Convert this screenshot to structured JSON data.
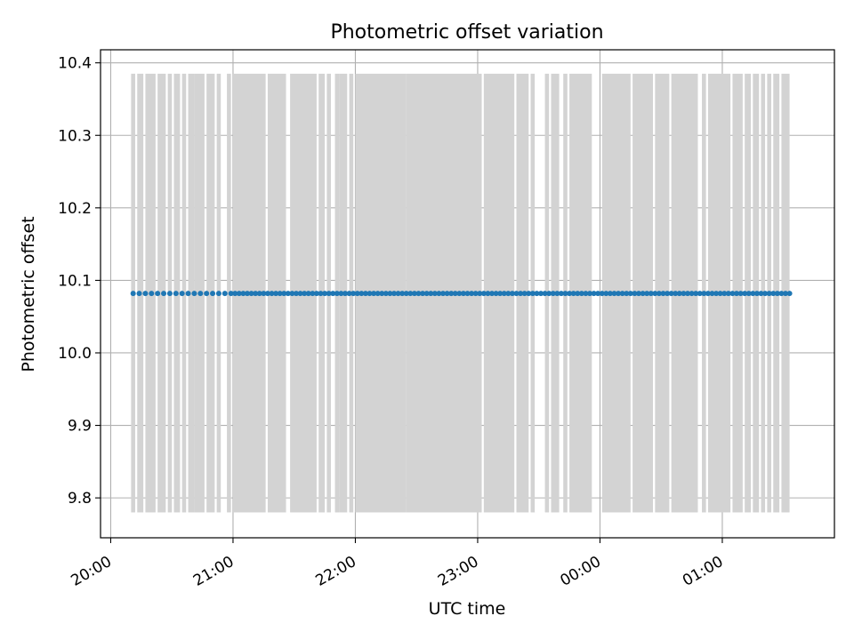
{
  "chart_data": {
    "type": "scatter",
    "title": "Photometric offset variation",
    "xlabel": "UTC time",
    "ylabel": "Photometric offset",
    "x_axis_kind": "time",
    "x_ticks": [
      "20:00",
      "21:00",
      "22:00",
      "23:00",
      "00:00",
      "01:00"
    ],
    "xlim": [
      "19:55",
      "25:55"
    ],
    "y_ticks": [
      "9.8",
      "9.9",
      "10.0",
      "10.1",
      "10.2",
      "10.3",
      "10.4"
    ],
    "ylim": [
      9.745,
      10.418
    ],
    "grid": true,
    "marker_color": "#1f77b4",
    "band_color": "#d3d3d3",
    "band_range": [
      9.78,
      10.385
    ],
    "bands": [
      [
        "20:10",
        "20:12"
      ],
      [
        "20:13",
        "20:16"
      ],
      [
        "20:17",
        "20:22"
      ],
      [
        "20:23",
        "20:27"
      ],
      [
        "20:28",
        "20:30"
      ],
      [
        "20:31",
        "20:34"
      ],
      [
        "20:35",
        "20:37"
      ],
      [
        "20:38",
        "20:41"
      ],
      [
        "20:41",
        "20:43"
      ],
      [
        "20:43",
        "20:46"
      ],
      [
        "20:47",
        "20:50"
      ],
      [
        "20:50",
        "20:51"
      ],
      [
        "20:52",
        "20:54"
      ],
      [
        "20:57",
        "20:59"
      ],
      [
        "21:00",
        "21:16"
      ],
      [
        "21:17",
        "21:26"
      ],
      [
        "21:28",
        "21:41"
      ],
      [
        "21:42",
        "21:45"
      ],
      [
        "21:46",
        "21:48"
      ],
      [
        "21:50",
        "21:52"
      ],
      [
        "21:52",
        "21:56"
      ],
      [
        "21:57",
        "21:59"
      ],
      [
        "22:00",
        "22:25"
      ],
      [
        "22:25",
        "23:02"
      ],
      [
        "23:03",
        "23:18"
      ],
      [
        "23:19",
        "23:25"
      ],
      [
        "23:26",
        "23:28"
      ],
      [
        "23:33",
        "23:35"
      ],
      [
        "23:36",
        "23:40"
      ],
      [
        "23:42",
        "23:44"
      ],
      [
        "23:45",
        "23:56"
      ],
      [
        "24:01",
        "24:15"
      ],
      [
        "24:16",
        "24:26"
      ],
      [
        "24:27",
        "24:34"
      ],
      [
        "24:35",
        "24:48"
      ],
      [
        "24:50",
        "24:52"
      ],
      [
        "24:53",
        "25:04"
      ],
      [
        "25:05",
        "25:10"
      ],
      [
        "25:11",
        "25:14"
      ],
      [
        "25:15",
        "25:18"
      ],
      [
        "25:19",
        "25:21"
      ],
      [
        "25:22",
        "25:24"
      ],
      [
        "25:25",
        "25:28"
      ],
      [
        "25:29",
        "25:33"
      ]
    ],
    "series": [
      {
        "y": 10.082,
        "x": [
          "20:11",
          "20:14",
          "20:17",
          "20:20",
          "20:23",
          "20:26",
          "20:29",
          "20:32",
          "20:35",
          "20:38",
          "20:41",
          "20:44",
          "20:47",
          "20:50",
          "20:53",
          "20:56",
          "20:59",
          "21:01",
          "21:03",
          "21:05",
          "21:07",
          "21:09",
          "21:11",
          "21:13",
          "21:15",
          "21:17",
          "21:19",
          "21:21",
          "21:23",
          "21:25",
          "21:27",
          "21:29",
          "21:31",
          "21:33",
          "21:35",
          "21:37",
          "21:39",
          "21:41",
          "21:43",
          "21:45",
          "21:47",
          "21:49",
          "21:51",
          "21:53",
          "21:55",
          "21:57",
          "21:59",
          "22:01",
          "22:03",
          "22:05",
          "22:07",
          "22:09",
          "22:11",
          "22:13",
          "22:15",
          "22:17",
          "22:19",
          "22:21",
          "22:23",
          "22:25",
          "22:27",
          "22:29",
          "22:31",
          "22:33",
          "22:35",
          "22:37",
          "22:39",
          "22:41",
          "22:43",
          "22:45",
          "22:47",
          "22:49",
          "22:51",
          "22:53",
          "22:55",
          "22:57",
          "22:59",
          "23:01",
          "23:03",
          "23:05",
          "23:07",
          "23:09",
          "23:11",
          "23:13",
          "23:15",
          "23:17",
          "23:19",
          "23:21",
          "23:23",
          "23:25",
          "23:27",
          "23:29",
          "23:31",
          "23:33",
          "23:35",
          "23:37",
          "23:39",
          "23:41",
          "23:43",
          "23:45",
          "23:47",
          "23:49",
          "23:51",
          "23:53",
          "23:55",
          "23:57",
          "23:59",
          "24:01",
          "24:03",
          "24:05",
          "24:07",
          "24:09",
          "24:11",
          "24:13",
          "24:15",
          "24:17",
          "24:19",
          "24:21",
          "24:23",
          "24:25",
          "24:27",
          "24:29",
          "24:31",
          "24:33",
          "24:35",
          "24:37",
          "24:39",
          "24:41",
          "24:43",
          "24:45",
          "24:47",
          "24:49",
          "24:51",
          "24:53",
          "24:55",
          "24:57",
          "24:59",
          "25:01",
          "25:03",
          "25:05",
          "25:07",
          "25:09",
          "25:11",
          "25:13",
          "25:15",
          "25:17",
          "25:19",
          "25:21",
          "25:23",
          "25:25",
          "25:27",
          "25:29",
          "25:31",
          "25:33"
        ]
      }
    ]
  }
}
